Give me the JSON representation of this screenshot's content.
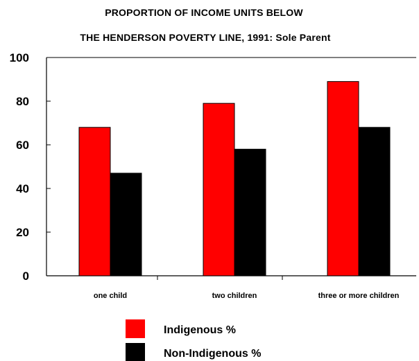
{
  "chart_data": {
    "type": "bar",
    "title": "PROPORTION OF INCOME UNITS BELOW",
    "subtitle": "THE HENDERSON POVERTY LINE, 1991: Sole Parent",
    "categories": [
      "one child",
      "two children",
      "three or more children"
    ],
    "series": [
      {
        "name": "Indigenous  %",
        "values": [
          68,
          79,
          89
        ],
        "color": "#ff0000"
      },
      {
        "name": "Non-Indigenous %",
        "values": [
          47,
          58,
          68
        ],
        "color": "#000000"
      }
    ],
    "ylim": [
      0,
      100
    ],
    "yticks": [
      0,
      20,
      40,
      60,
      80,
      100
    ],
    "grid": false,
    "legend_position": "bottom"
  }
}
